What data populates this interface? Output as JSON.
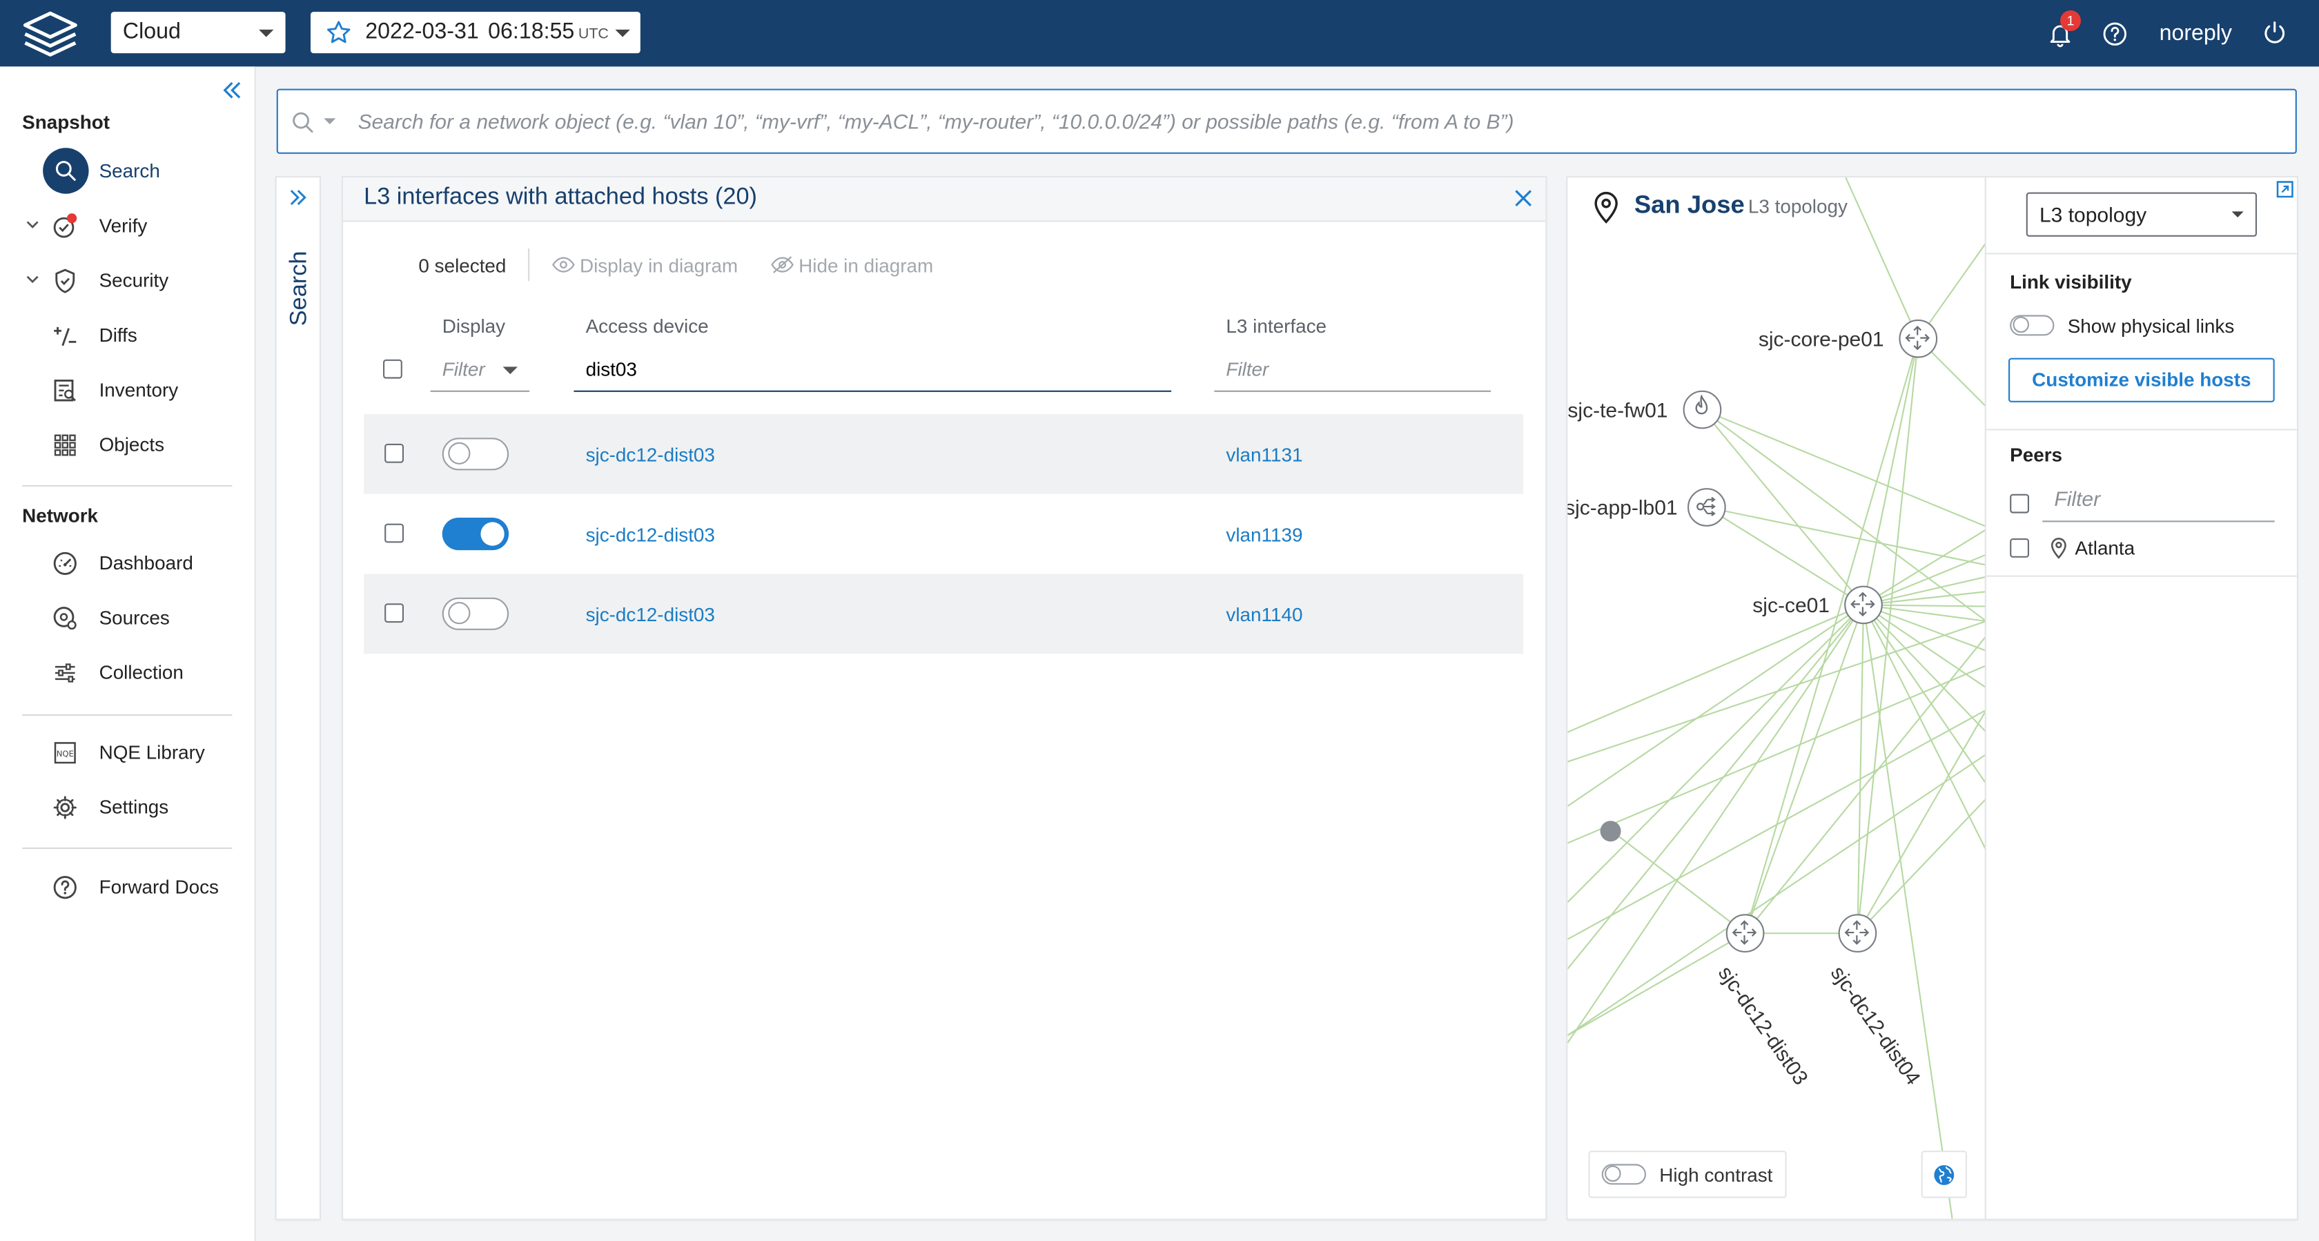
{
  "topbar": {
    "workspace": "Cloud",
    "snapshot_date": "2022-03-31",
    "snapshot_time": "06:18:55",
    "snapshot_tz": "UTC",
    "notification_count": "1",
    "user": "noreply"
  },
  "sidebar": {
    "snapshot_title": "Snapshot",
    "network_title": "Network",
    "items": {
      "search": "Search",
      "verify": "Verify",
      "security": "Security",
      "diffs": "Diffs",
      "inventory": "Inventory",
      "objects": "Objects",
      "dashboard": "Dashboard",
      "sources": "Sources",
      "collection": "Collection",
      "nqe_library": "NQE Library",
      "settings": "Settings",
      "forward_docs": "Forward Docs"
    }
  },
  "search": {
    "placeholder": "Search for a network object (e.g. “vlan 10”, “my-vrf”, “my-ACL”, “my-router”, “10.0.0.0/24”) or possible paths (e.g. “from A to B”)",
    "tab_label": "Search"
  },
  "results": {
    "title": "L3 interfaces with attached hosts (20)",
    "selected": "0 selected",
    "display_in_diagram": "Display in diagram",
    "hide_in_diagram": "Hide in diagram",
    "columns": {
      "display": "Display",
      "access_device": "Access device",
      "l3_interface": "L3 interface"
    },
    "filters": {
      "display_placeholder": "Filter",
      "access_device_value": "dist03",
      "l3_placeholder": "Filter"
    },
    "rows": [
      {
        "device": "sjc-dc12-dist03",
        "interface": "vlan1131",
        "display": false
      },
      {
        "device": "sjc-dc12-dist03",
        "interface": "vlan1139",
        "display": true
      },
      {
        "device": "sjc-dc12-dist03",
        "interface": "vlan1140",
        "display": false
      }
    ]
  },
  "topology": {
    "site": "San Jose",
    "view": "L3 topology",
    "nodes": {
      "core_pe01": "sjc-core-pe01",
      "te_fw01": "sjc-te-fw01",
      "app_lb01": "sjc-app-lb01",
      "ce01": "sjc-ce01",
      "dist03": "sjc-dc12-dist03",
      "dist04": "sjc-dc12-dist04"
    },
    "high_contrast": "High contrast",
    "colors": {
      "link": "#b7d9a2",
      "accent": "#1f7fd0",
      "brand": "#17406d"
    }
  },
  "side_panel": {
    "view_select": "L3 topology",
    "link_visibility_title": "Link visibility",
    "show_physical_links": "Show physical links",
    "customize_button": "Customize visible hosts",
    "peers_title": "Peers",
    "peers_filter_placeholder": "Filter",
    "peers": [
      "Atlanta"
    ]
  }
}
